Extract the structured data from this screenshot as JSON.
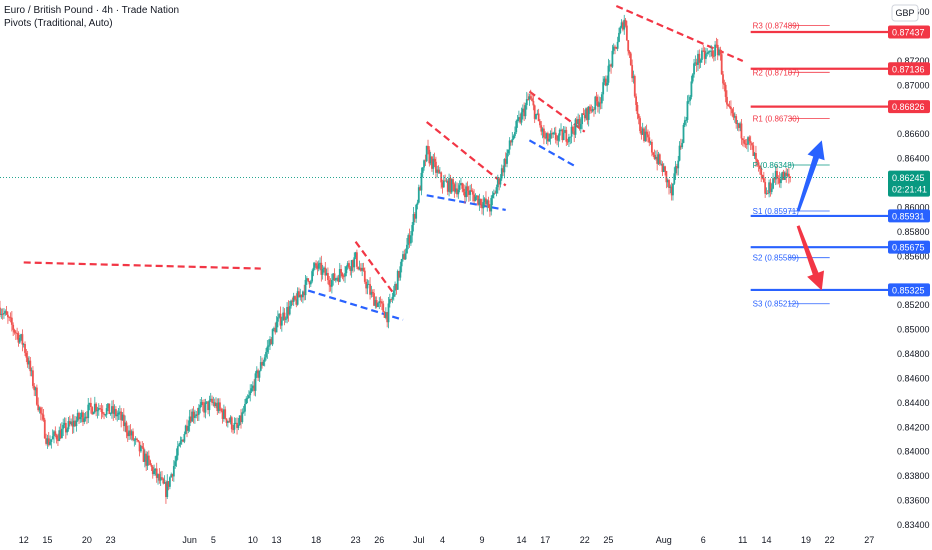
{
  "header": {
    "title": "Euro / British Pound · 4h · Trade Nation",
    "indicator": "Pivots (Traditional, Auto)"
  },
  "currency_button": "GBP",
  "colors": {
    "up": "#26a69a",
    "down": "#ef5350",
    "red_line": "#f23645",
    "blue_line": "#2962ff",
    "price_tag": "#089981",
    "pivot_r": "#f23645",
    "pivot_p": "#089981",
    "pivot_s": "#2962ff"
  },
  "price_axis": {
    "ticks": [
      "0.87600",
      "0.87200",
      "0.87000",
      "0.86600",
      "0.86400",
      "0.86000",
      "0.85800",
      "0.85600",
      "0.85200",
      "0.85000",
      "0.84800",
      "0.84600",
      "0.84400",
      "0.84200",
      "0.84000",
      "0.83800",
      "0.83600",
      "0.83400"
    ]
  },
  "time_axis": {
    "labels": [
      {
        "text": "12",
        "date": "2025-05-12"
      },
      {
        "text": "15",
        "date": "2025-05-15"
      },
      {
        "text": "20",
        "date": "2025-05-20"
      },
      {
        "text": "23",
        "date": "2025-05-23"
      },
      {
        "text": "Jun",
        "date": "2025-06-02"
      },
      {
        "text": "5",
        "date": "2025-06-05"
      },
      {
        "text": "10",
        "date": "2025-06-10"
      },
      {
        "text": "13",
        "date": "2025-06-13"
      },
      {
        "text": "18",
        "date": "2025-06-18"
      },
      {
        "text": "23",
        "date": "2025-06-23"
      },
      {
        "text": "26",
        "date": "2025-06-26"
      },
      {
        "text": "Jul",
        "date": "2025-07-01"
      },
      {
        "text": "4",
        "date": "2025-07-04"
      },
      {
        "text": "9",
        "date": "2025-07-09"
      },
      {
        "text": "14",
        "date": "2025-07-14"
      },
      {
        "text": "17",
        "date": "2025-07-17"
      },
      {
        "text": "22",
        "date": "2025-07-22"
      },
      {
        "text": "25",
        "date": "2025-07-25"
      },
      {
        "text": "Aug",
        "date": "2025-08-01"
      },
      {
        "text": "6",
        "date": "2025-08-06"
      },
      {
        "text": "11",
        "date": "2025-08-11"
      },
      {
        "text": "14",
        "date": "2025-08-14"
      },
      {
        "text": "19",
        "date": "2025-08-19"
      },
      {
        "text": "22",
        "date": "2025-08-22"
      },
      {
        "text": "27",
        "date": "2025-08-27"
      }
    ]
  },
  "chart_data": {
    "type": "candlestick",
    "title": "Euro / British Pound · 4h · Trade Nation",
    "quote_currency": "GBP",
    "ylim": [
      0.834,
      0.8765
    ],
    "xlim": [
      "2025-05-09",
      "2025-08-29"
    ],
    "price_path": [
      {
        "d": "2025-05-09",
        "p": 0.8518
      },
      {
        "d": "2025-05-12",
        "p": 0.8488
      },
      {
        "d": "2025-05-15",
        "p": 0.8408
      },
      {
        "d": "2025-05-18",
        "p": 0.8422
      },
      {
        "d": "2025-05-21",
        "p": 0.8438
      },
      {
        "d": "2025-05-24",
        "p": 0.843
      },
      {
        "d": "2025-05-27",
        "p": 0.8398
      },
      {
        "d": "2025-05-30",
        "p": 0.8368
      },
      {
        "d": "2025-06-02",
        "p": 0.843
      },
      {
        "d": "2025-06-05",
        "p": 0.844
      },
      {
        "d": "2025-06-08",
        "p": 0.8418
      },
      {
        "d": "2025-06-11",
        "p": 0.847
      },
      {
        "d": "2025-06-13",
        "p": 0.8505
      },
      {
        "d": "2025-06-16",
        "p": 0.8528
      },
      {
        "d": "2025-06-18",
        "p": 0.8552
      },
      {
        "d": "2025-06-20",
        "p": 0.854
      },
      {
        "d": "2025-06-23",
        "p": 0.8558
      },
      {
        "d": "2025-06-25",
        "p": 0.8528
      },
      {
        "d": "2025-06-27",
        "p": 0.8512
      },
      {
        "d": "2025-06-30",
        "p": 0.858
      },
      {
        "d": "2025-07-02",
        "p": 0.8645
      },
      {
        "d": "2025-07-04",
        "p": 0.862
      },
      {
        "d": "2025-07-07",
        "p": 0.8614
      },
      {
        "d": "2025-07-10",
        "p": 0.86
      },
      {
        "d": "2025-07-13",
        "p": 0.866
      },
      {
        "d": "2025-07-15",
        "p": 0.869
      },
      {
        "d": "2025-07-17",
        "p": 0.8655
      },
      {
        "d": "2025-07-20",
        "p": 0.866
      },
      {
        "d": "2025-07-22",
        "p": 0.8675
      },
      {
        "d": "2025-07-24",
        "p": 0.869
      },
      {
        "d": "2025-07-27",
        "p": 0.8755
      },
      {
        "d": "2025-07-29",
        "p": 0.8665
      },
      {
        "d": "2025-08-01",
        "p": 0.863
      },
      {
        "d": "2025-08-02",
        "p": 0.861
      },
      {
        "d": "2025-08-05",
        "p": 0.872
      },
      {
        "d": "2025-08-08",
        "p": 0.873
      },
      {
        "d": "2025-08-09",
        "p": 0.868
      },
      {
        "d": "2025-08-12",
        "p": 0.865
      },
      {
        "d": "2025-08-14",
        "p": 0.861
      },
      {
        "d": "2025-08-15",
        "p": 0.8625
      },
      {
        "d": "2025-08-17",
        "p": 0.86245
      }
    ],
    "current_price": {
      "value": "0.86245",
      "countdown": "02:21:41"
    },
    "pivots": [
      {
        "label": "R3 (0.87489)",
        "value": 0.87489,
        "group": "r"
      },
      {
        "label": "R2 (0.87107)",
        "value": 0.87107,
        "group": "r"
      },
      {
        "label": "R1 (0.86730)",
        "value": 0.8673,
        "group": "r"
      },
      {
        "label": "P (0.86348)",
        "value": 0.86348,
        "group": "p"
      },
      {
        "label": "S1 (0.85971)",
        "value": 0.85971,
        "group": "s"
      },
      {
        "label": "S2 (0.85589)",
        "value": 0.85589,
        "group": "s"
      },
      {
        "label": "S3 (0.85212)",
        "value": 0.85212,
        "group": "s"
      }
    ],
    "horizontal_levels": [
      {
        "value": 0.87437,
        "label": "0.87437",
        "color": "red"
      },
      {
        "value": 0.87136,
        "label": "0.87136",
        "color": "red"
      },
      {
        "value": 0.86826,
        "label": "0.86826",
        "color": "red"
      },
      {
        "value": 0.85931,
        "label": "0.85931",
        "color": "blue"
      },
      {
        "value": 0.85675,
        "label": "0.85675",
        "color": "blue"
      },
      {
        "value": 0.85325,
        "label": "0.85325",
        "color": "blue"
      }
    ],
    "dashed_trendlines": [
      {
        "color": "red",
        "from": {
          "d": "2025-05-12",
          "p": 0.8555
        },
        "to": {
          "d": "2025-06-11",
          "p": 0.855
        }
      },
      {
        "color": "red",
        "from": {
          "d": "2025-06-23",
          "p": 0.8572
        },
        "to": {
          "d": "2025-06-28",
          "p": 0.8528
        }
      },
      {
        "color": "blue",
        "from": {
          "d": "2025-06-17",
          "p": 0.8532
        },
        "to": {
          "d": "2025-06-29",
          "p": 0.8508
        }
      },
      {
        "color": "red",
        "from": {
          "d": "2025-07-02",
          "p": 0.867
        },
        "to": {
          "d": "2025-07-12",
          "p": 0.8618
        }
      },
      {
        "color": "blue",
        "from": {
          "d": "2025-07-02",
          "p": 0.861
        },
        "to": {
          "d": "2025-07-12",
          "p": 0.8598
        }
      },
      {
        "color": "red",
        "from": {
          "d": "2025-07-15",
          "p": 0.8695
        },
        "to": {
          "d": "2025-07-22",
          "p": 0.8662
        }
      },
      {
        "color": "blue",
        "from": {
          "d": "2025-07-15",
          "p": 0.8655
        },
        "to": {
          "d": "2025-07-21",
          "p": 0.8633
        }
      },
      {
        "color": "red",
        "from": {
          "d": "2025-07-26",
          "p": 0.8765
        },
        "to": {
          "d": "2025-08-11",
          "p": 0.872
        }
      }
    ],
    "arrows": [
      {
        "color": "blue",
        "direction": "up",
        "from": {
          "d": "2025-08-18",
          "p": 0.8597
        },
        "to": {
          "d": "2025-08-21",
          "p": 0.8655
        }
      },
      {
        "color": "red",
        "direction": "down",
        "from": {
          "d": "2025-08-18",
          "p": 0.8585
        },
        "to": {
          "d": "2025-08-21",
          "p": 0.8532
        }
      }
    ]
  }
}
